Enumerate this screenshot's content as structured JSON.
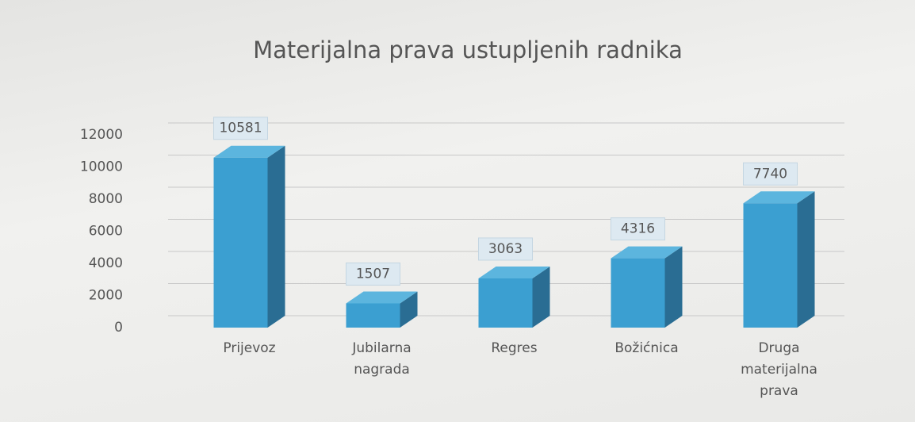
{
  "chart_data": {
    "type": "bar",
    "title": "Materijalna prava ustupljenih radnika",
    "categories": [
      "Prijevoz",
      "Jubilarna nagrada",
      "Regres",
      "Božićnica",
      "Druga materijalna prava"
    ],
    "values": [
      10581,
      1507,
      3063,
      4316,
      7740
    ],
    "color": "#3b9fd1",
    "ylim": [
      0,
      12000
    ],
    "yticks": [
      0,
      2000,
      4000,
      6000,
      8000,
      10000,
      12000
    ],
    "grid": true
  }
}
